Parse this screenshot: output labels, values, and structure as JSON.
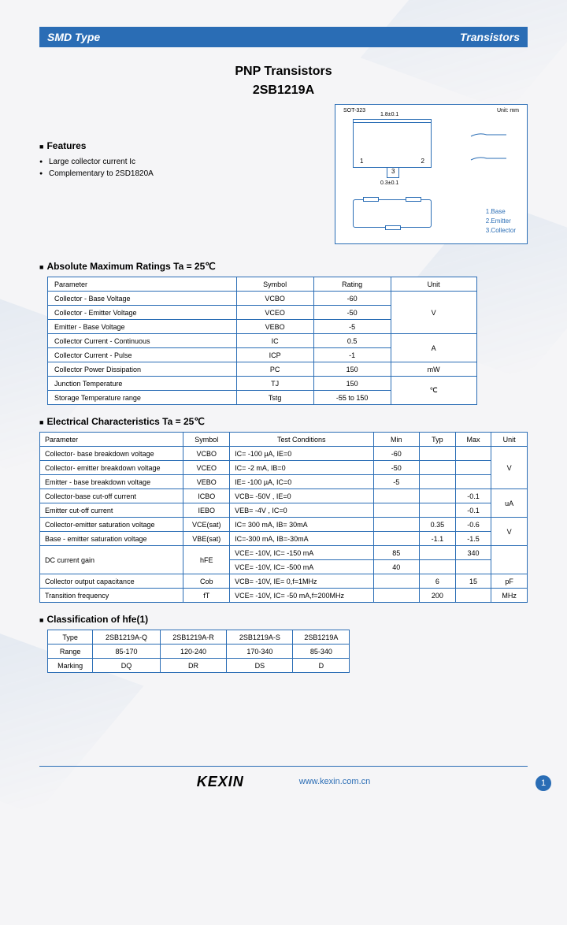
{
  "header": {
    "left": "SMD Type",
    "right": "Transistors"
  },
  "title": {
    "main": "PNP  Transistors",
    "part": "2SB1219A"
  },
  "features": {
    "heading": "Features",
    "items": [
      "Large collector current Ic",
      "Complementary to 2SD1820A"
    ]
  },
  "package": {
    "label": "SOT-323",
    "unit_note": "Unit: mm",
    "pins": [
      "1.Base",
      "2.Emitter",
      "3.Collector"
    ],
    "dim_top": "1.8±0.1",
    "dim_bot": "0.3±0.1"
  },
  "abs_max": {
    "heading": "Absolute Maximum Ratings Ta = 25℃",
    "cols": [
      "Parameter",
      "Symbol",
      "Rating",
      "Unit"
    ],
    "rows": [
      {
        "p": "Collector - Base Voltage",
        "s": "VCBO",
        "r": "-60",
        "u": "V",
        "uspan": 3
      },
      {
        "p": "Collector - Emitter Voltage",
        "s": "VCEO",
        "r": "-50"
      },
      {
        "p": "Emitter - Base Voltage",
        "s": "VEBO",
        "r": "-5"
      },
      {
        "p": "Collector Current   - Continuous",
        "s": "IC",
        "r": "0.5",
        "u": "A",
        "uspan": 2
      },
      {
        "p": "Collector Current   - Pulse",
        "s": "ICP",
        "r": "-1"
      },
      {
        "p": "Collector Power Dissipation",
        "s": "PC",
        "r": "150",
        "u": "mW",
        "uspan": 1
      },
      {
        "p": "Junction Temperature",
        "s": "TJ",
        "r": "150",
        "u": "℃",
        "uspan": 2
      },
      {
        "p": "Storage Temperature range",
        "s": "Tstg",
        "r": "-55 to 150"
      }
    ]
  },
  "elec": {
    "heading": "Electrical Characteristics Ta = 25℃",
    "cols": [
      "Parameter",
      "Symbol",
      "Test Conditions",
      "Min",
      "Typ",
      "Max",
      "Unit"
    ],
    "rows": [
      {
        "p": "Collector- base breakdown voltage",
        "s": "VCBO",
        "tc": "IC= -100 µA,   IE=0",
        "min": "-60",
        "typ": "",
        "max": "",
        "u": "V",
        "uspan": 3
      },
      {
        "p": "Collector- emitter breakdown voltage",
        "s": "VCEO",
        "tc": "IC= -2 mA,  IB=0",
        "min": "-50",
        "typ": "",
        "max": ""
      },
      {
        "p": "Emitter - base breakdown voltage",
        "s": "VEBO",
        "tc": "IE= -100 µA,   IC=0",
        "min": "-5",
        "typ": "",
        "max": ""
      },
      {
        "p": "Collector-base cut-off current",
        "s": "ICBO",
        "tc": "VCB= -50V , IE=0",
        "min": "",
        "typ": "",
        "max": "-0.1",
        "u": "uA",
        "uspan": 2
      },
      {
        "p": "Emitter cut-off current",
        "s": "IEBO",
        "tc": "VEB= -4V , IC=0",
        "min": "",
        "typ": "",
        "max": "-0.1"
      },
      {
        "p": "Collector-emitter saturation voltage",
        "s": "VCE(sat)",
        "tc": "IC= 300 mA, IB= 30mA",
        "min": "",
        "typ": "0.35",
        "max": "-0.6",
        "u": "V",
        "uspan": 2
      },
      {
        "p": "Base - emitter saturation voltage",
        "s": "VBE(sat)",
        "tc": "IC=-300 mA, IB=-30mA",
        "min": "",
        "typ": "-1.1",
        "max": "-1.5"
      },
      {
        "p": "DC current gain",
        "s": "hFE",
        "tc": "VCE= -10V, IC= -150 mA",
        "min": "85",
        "typ": "",
        "max": "340",
        "u": "",
        "uspan": 2,
        "pspan": 2,
        "sspan": 2
      },
      {
        "tc": "VCE= -10V, IC= -500 mA",
        "min": "40",
        "typ": "",
        "max": ""
      },
      {
        "p": "Collector output capacitance",
        "s": "Cob",
        "tc": "VCB= -10V, IE= 0,f=1MHz",
        "min": "",
        "typ": "6",
        "max": "15",
        "u": "pF",
        "uspan": 1
      },
      {
        "p": "Transition frequency",
        "s": "fT",
        "tc": "VCE= -10V, IC= -50 mA,f=200MHz",
        "min": "",
        "typ": "200",
        "max": "",
        "u": "MHz",
        "uspan": 1
      }
    ]
  },
  "classif": {
    "heading": "Classification of hfe(1)",
    "headers": [
      "Type",
      "2SB1219A-Q",
      "2SB1219A-R",
      "2SB1219A-S",
      "2SB1219A"
    ],
    "rows": [
      [
        "Range",
        "85-170",
        "120-240",
        "170-340",
        "85-340"
      ],
      [
        "Marking",
        "DQ",
        "DR",
        "DS",
        "D"
      ]
    ]
  },
  "footer": {
    "brand": "KEXIN",
    "url": "www.kexin.com.cn",
    "page": "1"
  }
}
